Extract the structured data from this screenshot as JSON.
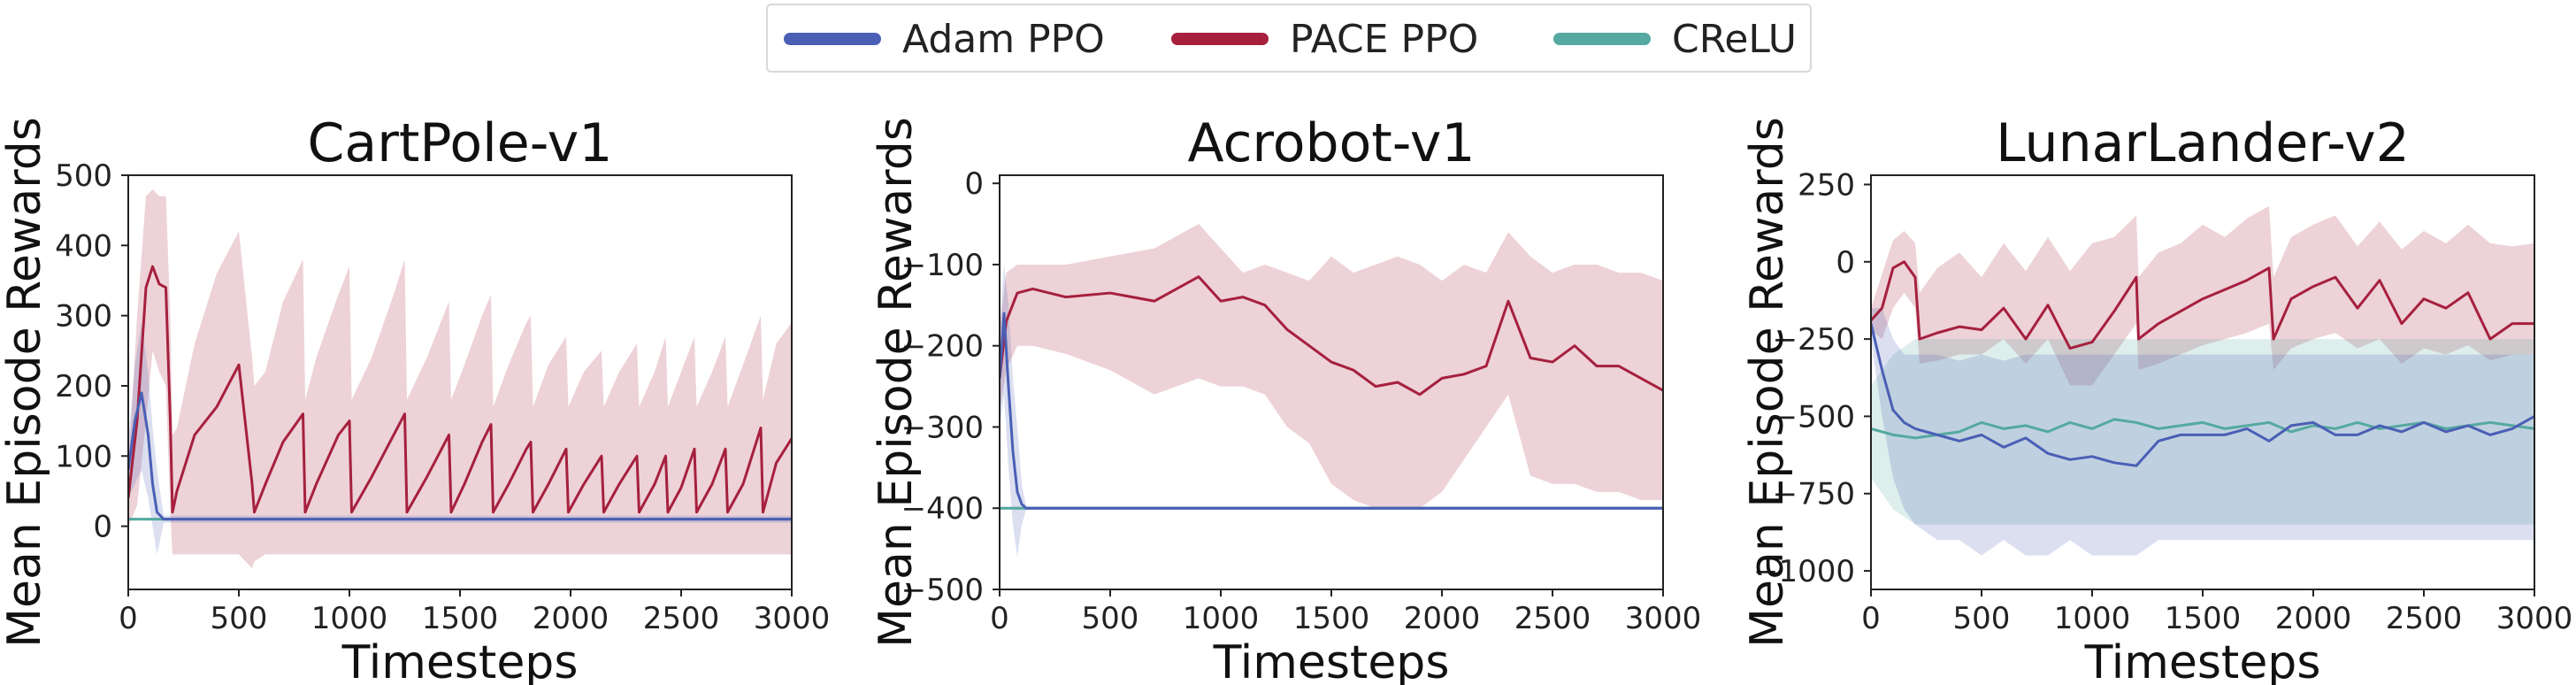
{
  "legend": {
    "items": [
      {
        "label": "Adam PPO",
        "color": "#4a5fb5"
      },
      {
        "label": "PACE PPO",
        "color": "#a6203e"
      },
      {
        "label": "CReLU",
        "color": "#55a9a0"
      }
    ]
  },
  "chart_data": [
    {
      "type": "line",
      "title": "CartPole-v1",
      "xlabel": "Timesteps",
      "ylabel": "Mean Episode Rewards",
      "xlim": [
        0,
        3000
      ],
      "ylim": [
        -90,
        500
      ],
      "xticks": [
        0,
        500,
        1000,
        1500,
        2000,
        2500,
        3000
      ],
      "yticks": [
        0,
        100,
        200,
        300,
        400,
        500
      ],
      "grid": false,
      "series": [
        {
          "name": "PACE PPO",
          "color": "#a6203e",
          "x": [
            0,
            40,
            80,
            110,
            140,
            170,
            190,
            200,
            220,
            300,
            400,
            500,
            560,
            570,
            620,
            700,
            790,
            800,
            850,
            950,
            1000,
            1010,
            1100,
            1200,
            1250,
            1260,
            1350,
            1450,
            1460,
            1520,
            1600,
            1640,
            1650,
            1720,
            1800,
            1820,
            1830,
            1900,
            1980,
            1990,
            2060,
            2140,
            2150,
            2220,
            2300,
            2310,
            2380,
            2430,
            2440,
            2500,
            2560,
            2570,
            2640,
            2700,
            2710,
            2780,
            2860,
            2870,
            2930,
            3000
          ],
          "y": [
            40,
            150,
            340,
            370,
            345,
            340,
            150,
            20,
            50,
            130,
            170,
            230,
            60,
            20,
            60,
            120,
            160,
            20,
            60,
            130,
            150,
            20,
            70,
            130,
            160,
            20,
            70,
            130,
            20,
            60,
            120,
            145,
            20,
            60,
            110,
            120,
            20,
            60,
            110,
            20,
            60,
            100,
            20,
            60,
            100,
            20,
            60,
            100,
            20,
            55,
            110,
            20,
            60,
            110,
            20,
            60,
            140,
            20,
            90,
            125
          ],
          "y_low": [
            0,
            30,
            150,
            250,
            220,
            200,
            20,
            -40,
            -40,
            -40,
            -40,
            -40,
            -60,
            -50,
            -40,
            -40,
            -40,
            -40,
            -40,
            -40,
            -40,
            -40,
            -40,
            -40,
            -40,
            -40,
            -40,
            -40,
            -40,
            -40,
            -40,
            -40,
            -40,
            -40,
            -40,
            -40,
            -40,
            -40,
            -40,
            -40,
            -40,
            -40,
            -40,
            -40,
            -40,
            -40,
            -40,
            -40,
            -40,
            -40,
            -40,
            -40,
            -40,
            -40,
            -40,
            -40,
            -40,
            -40,
            -40,
            -40
          ],
          "y_high": [
            80,
            300,
            470,
            480,
            470,
            470,
            300,
            130,
            140,
            260,
            360,
            420,
            240,
            200,
            220,
            320,
            380,
            180,
            240,
            330,
            370,
            180,
            240,
            330,
            380,
            180,
            240,
            320,
            180,
            230,
            300,
            330,
            170,
            230,
            290,
            300,
            170,
            230,
            270,
            170,
            220,
            250,
            170,
            220,
            260,
            170,
            220,
            270,
            170,
            220,
            270,
            170,
            220,
            270,
            170,
            230,
            300,
            180,
            260,
            290
          ]
        },
        {
          "name": "Adam PPO",
          "color": "#4a5fb5",
          "x": [
            0,
            30,
            60,
            90,
            110,
            130,
            160,
            3000
          ],
          "y": [
            80,
            150,
            190,
            130,
            60,
            20,
            10,
            10
          ],
          "y_low": [
            40,
            60,
            80,
            40,
            0,
            -40,
            5,
            5
          ],
          "y_high": [
            120,
            230,
            290,
            220,
            140,
            80,
            15,
            15
          ]
        },
        {
          "name": "CReLU",
          "color": "#55a9a0",
          "x": [
            0,
            3000
          ],
          "y": [
            10,
            10
          ],
          "y_low": [
            8,
            8
          ],
          "y_high": [
            12,
            12
          ]
        }
      ]
    },
    {
      "type": "line",
      "title": "Acrobot-v1",
      "xlabel": "Timesteps",
      "ylabel": "Mean Episode Rewards",
      "xlim": [
        0,
        3000
      ],
      "ylim": [
        -500,
        10
      ],
      "xticks": [
        0,
        500,
        1000,
        1500,
        2000,
        2500,
        3000
      ],
      "yticks": [
        0,
        -100,
        -200,
        -300,
        -400,
        -500
      ],
      "grid": false,
      "series": [
        {
          "name": "PACE PPO",
          "color": "#a6203e",
          "x": [
            0,
            30,
            80,
            150,
            300,
            500,
            700,
            900,
            1000,
            1100,
            1200,
            1300,
            1400,
            1500,
            1600,
            1700,
            1800,
            1900,
            2000,
            2100,
            2200,
            2300,
            2400,
            2500,
            2600,
            2700,
            2800,
            2900,
            3000
          ],
          "y": [
            -240,
            -170,
            -135,
            -130,
            -140,
            -135,
            -145,
            -115,
            -145,
            -140,
            -150,
            -180,
            -200,
            -220,
            -230,
            -250,
            -245,
            -260,
            -240,
            -235,
            -225,
            -145,
            -215,
            -220,
            -200,
            -225,
            -225,
            -240,
            -255
          ],
          "y_low": [
            -280,
            -230,
            -200,
            -200,
            -210,
            -230,
            -260,
            -240,
            -250,
            -250,
            -260,
            -300,
            -320,
            -370,
            -390,
            -400,
            -400,
            -400,
            -380,
            -340,
            -300,
            -260,
            -360,
            -370,
            -370,
            -380,
            -380,
            -390,
            -390
          ],
          "y_high": [
            -180,
            -110,
            -100,
            -100,
            -100,
            -90,
            -80,
            -50,
            -80,
            -110,
            -100,
            -110,
            -120,
            -90,
            -110,
            -100,
            -90,
            -100,
            -120,
            -100,
            -110,
            -60,
            -90,
            -110,
            -100,
            -100,
            -110,
            -110,
            -120
          ]
        },
        {
          "name": "Adam PPO",
          "color": "#4a5fb5",
          "x": [
            0,
            20,
            40,
            60,
            80,
            100,
            120,
            3000
          ],
          "y": [
            -240,
            -160,
            -250,
            -330,
            -380,
            -395,
            -400,
            -400
          ],
          "y_low": [
            -300,
            -260,
            -350,
            -420,
            -460,
            -420,
            -402,
            -402
          ],
          "y_high": [
            -180,
            -100,
            -150,
            -240,
            -300,
            -370,
            -398,
            -398
          ]
        },
        {
          "name": "CReLU",
          "color": "#55a9a0",
          "x": [
            0,
            3000
          ],
          "y": [
            -400,
            -400
          ],
          "y_low": [
            -402,
            -402
          ],
          "y_high": [
            -398,
            -398
          ]
        }
      ]
    },
    {
      "type": "line",
      "title": "LunarLander-v2",
      "xlabel": "Timesteps",
      "ylabel": "Mean Episode Rewards",
      "xlim": [
        0,
        3000
      ],
      "ylim": [
        -1060,
        280
      ],
      "xticks": [
        0,
        500,
        1000,
        1500,
        2000,
        2500,
        3000
      ],
      "yticks": [
        250,
        0,
        -250,
        -500,
        -750,
        -1000
      ],
      "grid": false,
      "series": [
        {
          "name": "PACE PPO",
          "color": "#a6203e",
          "x": [
            0,
            50,
            100,
            150,
            200,
            220,
            300,
            400,
            500,
            600,
            700,
            800,
            900,
            1000,
            1100,
            1200,
            1210,
            1300,
            1400,
            1500,
            1600,
            1700,
            1800,
            1820,
            1900,
            2000,
            2100,
            2200,
            2300,
            2400,
            2500,
            2600,
            2700,
            2800,
            2900,
            3000
          ],
          "y": [
            -190,
            -150,
            -20,
            0,
            -50,
            -250,
            -230,
            -210,
            -220,
            -150,
            -250,
            -140,
            -280,
            -260,
            -160,
            -50,
            -250,
            -200,
            -160,
            -120,
            -90,
            -60,
            -20,
            -250,
            -120,
            -80,
            -50,
            -150,
            -60,
            -200,
            -120,
            -150,
            -100,
            -250,
            -200,
            -200
          ],
          "y_low": [
            -220,
            -250,
            -150,
            -100,
            -150,
            -330,
            -320,
            -300,
            -300,
            -250,
            -330,
            -250,
            -400,
            -400,
            -300,
            -200,
            -350,
            -330,
            -300,
            -270,
            -250,
            -230,
            -200,
            -350,
            -280,
            -250,
            -230,
            -280,
            -250,
            -330,
            -280,
            -300,
            -270,
            -320,
            -300,
            -300
          ],
          "y_high": [
            -150,
            -40,
            70,
            100,
            60,
            -100,
            -20,
            30,
            -50,
            60,
            -30,
            80,
            -30,
            60,
            80,
            150,
            -50,
            30,
            60,
            120,
            80,
            140,
            180,
            -50,
            80,
            120,
            150,
            50,
            130,
            40,
            100,
            60,
            120,
            60,
            50,
            60
          ]
        },
        {
          "name": "Adam PPO",
          "color": "#4a5fb5",
          "x": [
            0,
            50,
            100,
            150,
            200,
            300,
            400,
            500,
            600,
            700,
            800,
            900,
            1000,
            1100,
            1200,
            1300,
            1400,
            1500,
            1600,
            1700,
            1800,
            1900,
            2000,
            2100,
            2200,
            2300,
            2400,
            2500,
            2600,
            2700,
            2800,
            2900,
            3000
          ],
          "y": [
            -200,
            -350,
            -480,
            -520,
            -540,
            -560,
            -580,
            -560,
            -600,
            -570,
            -620,
            -640,
            -630,
            -650,
            -660,
            -580,
            -560,
            -560,
            -560,
            -540,
            -580,
            -530,
            -520,
            -560,
            -560,
            -530,
            -550,
            -520,
            -550,
            -530,
            -560,
            -540,
            -500
          ],
          "y_low": [
            -250,
            -500,
            -700,
            -800,
            -850,
            -900,
            -900,
            -950,
            -900,
            -950,
            -950,
            -900,
            -950,
            -950,
            -950,
            -900,
            -900,
            -900,
            -900,
            -900,
            -900,
            -900,
            -900,
            -900,
            -900,
            -900,
            -900,
            -900,
            -900,
            -900,
            -900,
            -900,
            -900
          ],
          "y_high": [
            -150,
            -150,
            -250,
            -300,
            -300,
            -300,
            -320,
            -300,
            -320,
            -300,
            -300,
            -300,
            -300,
            -300,
            -300,
            -300,
            -300,
            -300,
            -300,
            -300,
            -300,
            -300,
            -300,
            -300,
            -300,
            -300,
            -300,
            -300,
            -300,
            -300,
            -300,
            -300,
            -300
          ]
        },
        {
          "name": "CReLU",
          "color": "#55a9a0",
          "x": [
            0,
            100,
            200,
            300,
            400,
            500,
            600,
            700,
            800,
            900,
            1000,
            1100,
            1200,
            1300,
            1400,
            1500,
            1600,
            1700,
            1800,
            1900,
            2000,
            2100,
            2200,
            2300,
            2400,
            2500,
            2600,
            2700,
            2800,
            2900,
            3000
          ],
          "y": [
            -540,
            -560,
            -570,
            -560,
            -550,
            -520,
            -540,
            -530,
            -550,
            -520,
            -540,
            -510,
            -520,
            -540,
            -530,
            -520,
            -540,
            -530,
            -520,
            -550,
            -530,
            -540,
            -520,
            -540,
            -530,
            -520,
            -540,
            -530,
            -520,
            -530,
            -540
          ],
          "y_low": [
            -700,
            -800,
            -850,
            -850,
            -850,
            -850,
            -850,
            -850,
            -850,
            -850,
            -850,
            -850,
            -850,
            -850,
            -850,
            -850,
            -850,
            -850,
            -850,
            -850,
            -850,
            -850,
            -850,
            -850,
            -850,
            -850,
            -850,
            -850,
            -850,
            -850,
            -850
          ],
          "y_high": [
            -400,
            -300,
            -250,
            -250,
            -250,
            -250,
            -250,
            -250,
            -250,
            -250,
            -250,
            -250,
            -250,
            -250,
            -250,
            -250,
            -250,
            -250,
            -250,
            -250,
            -250,
            -250,
            -250,
            -250,
            -250,
            -250,
            -250,
            -250,
            -250,
            -250,
            -250
          ]
        }
      ]
    }
  ]
}
